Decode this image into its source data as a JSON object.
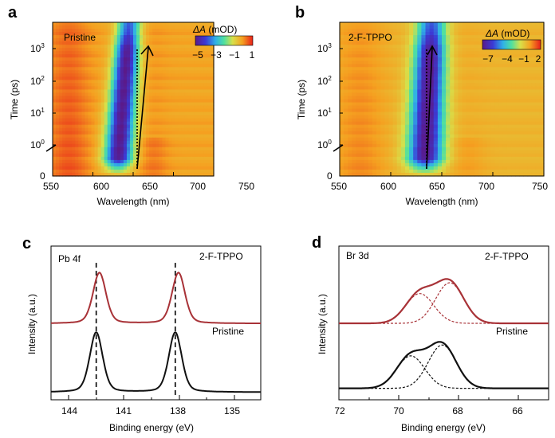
{
  "figure": {
    "panel_a": {
      "letter": "a",
      "label": "Pristine",
      "ylabel": "Time (ps)",
      "xlabel": "Wavelength (nm)",
      "xticks": [
        "550",
        "600",
        "650",
        "700",
        "750"
      ],
      "colorbar_title_sym": "ΔA",
      "colorbar_title_unit": "(mOD)",
      "colorbar_ticks": [
        "−5",
        "−3",
        "−1",
        "1"
      ]
    },
    "panel_b": {
      "letter": "b",
      "label": "2-F-TPPO",
      "ylabel": "Time (ps)",
      "xlabel": "Wavelength (nm)",
      "xticks": [
        "550",
        "600",
        "650",
        "700",
        "750"
      ],
      "colorbar_title_sym": "ΔA",
      "colorbar_title_unit": "(mOD)",
      "colorbar_ticks": [
        "−7",
        "−4",
        "−1",
        "2"
      ]
    },
    "panel_c": {
      "letter": "c",
      "label": "Pb 4f",
      "series_top": "2-F-TPPO",
      "series_bottom": "Pristine",
      "ylabel": "Intensity (a.u.)",
      "xlabel": "Binding energy (eV)",
      "xticks": [
        "144",
        "141",
        "138",
        "135"
      ]
    },
    "panel_d": {
      "letter": "d",
      "label": "Br 3d",
      "series_top": "2-F-TPPO",
      "series_bottom": "Pristine",
      "ylabel": "Intensity (a.u.)",
      "xlabel": "Binding energy (eV)",
      "xticks": [
        "72",
        "70",
        "68",
        "66"
      ]
    }
  },
  "chart_data": [
    {
      "type": "heatmap",
      "panel": "a",
      "title": "Pristine",
      "xlabel": "Wavelength (nm)",
      "ylabel": "Time (ps)",
      "xlim": [
        550,
        750
      ],
      "y_ticks": [
        "0",
        "10^0",
        "10^1",
        "10^2",
        "10^3"
      ],
      "y_scale": "linear below 1 ps, log above (axis break)",
      "colorbar": {
        "label": "ΔA (mOD)",
        "range": [
          -6,
          1.5
        ],
        "ticks": [
          -5,
          -3,
          -1,
          1
        ]
      },
      "bleach_center_nm": {
        "early": 630,
        "late": 645
      },
      "bleach_min_mOD": -6,
      "arrow": {
        "from_nm": 632,
        "to_nm": 645,
        "style": "solid"
      },
      "reference_line_nm": 632
    },
    {
      "type": "heatmap",
      "panel": "b",
      "title": "2-F-TPPO",
      "xlabel": "Wavelength (nm)",
      "ylabel": "Time (ps)",
      "xlim": [
        550,
        750
      ],
      "y_ticks": [
        "0",
        "10^0",
        "10^1",
        "10^2",
        "10^3"
      ],
      "y_scale": "linear below 1 ps, log above (axis break)",
      "colorbar": {
        "label": "ΔA (mOD)",
        "range": [
          -8,
          2.5
        ],
        "ticks": [
          -7,
          -4,
          -1,
          2
        ]
      },
      "bleach_center_nm": {
        "early": 633,
        "late": 640
      },
      "bleach_min_mOD": -8,
      "arrow": {
        "from_nm": 634,
        "to_nm": 639,
        "style": "solid"
      },
      "reference_line_nm": 634
    },
    {
      "type": "line",
      "panel": "c",
      "title": "Pb 4f",
      "xlabel": "Binding energy (eV)",
      "ylabel": "Intensity (a.u.)",
      "xlim": [
        146,
        133
      ],
      "x_reversed": true,
      "reference_lines_eV": [
        143.2,
        138.3
      ],
      "series": [
        {
          "name": "2-F-TPPO",
          "color": "#a83237",
          "peaks_eV": [
            143.0,
            138.1
          ],
          "peak_height": 0.85,
          "fwhm_eV": 0.95,
          "offset": 1.15
        },
        {
          "name": "Pristine",
          "color": "#111111",
          "peaks_eV": [
            143.2,
            138.3
          ],
          "peak_height": 1.0,
          "fwhm_eV": 0.95,
          "offset": 0
        }
      ]
    },
    {
      "type": "line",
      "panel": "d",
      "title": "Br 3d",
      "xlabel": "Binding energy (eV)",
      "ylabel": "Intensity (a.u.)",
      "xlim": [
        72,
        65
      ],
      "x_reversed": true,
      "series": [
        {
          "name": "2-F-TPPO",
          "color": "#a83237",
          "offset": 1.2,
          "components": [
            {
              "center_eV": 69.3,
              "height": 0.55,
              "fwhm_eV": 1.1
            },
            {
              "center_eV": 68.3,
              "height": 0.75,
              "fwhm_eV": 1.1
            }
          ]
        },
        {
          "name": "Pristine",
          "color": "#111111",
          "offset": 0,
          "components": [
            {
              "center_eV": 69.6,
              "height": 0.6,
              "fwhm_eV": 1.1
            },
            {
              "center_eV": 68.55,
              "height": 0.8,
              "fwhm_eV": 1.1
            }
          ]
        }
      ]
    }
  ]
}
